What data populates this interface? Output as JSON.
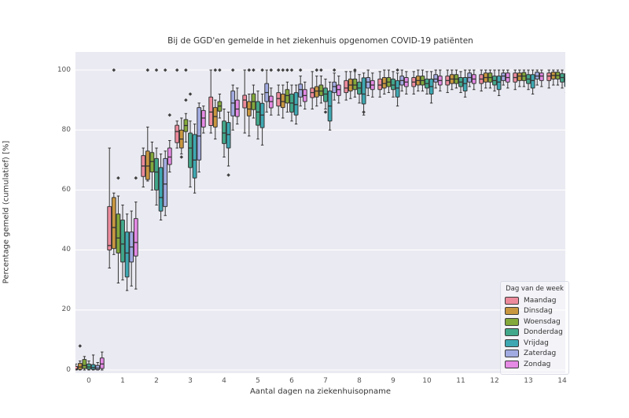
{
  "title": "Bij de GGD'en gemelde in het ziekenhuis opgenomen COVID-19 patiënten",
  "xlabel": "Aantal dagen na ziekenhuisopname",
  "ylabel": "Percentage gemeld (cumulatief) [%]",
  "legend": {
    "title": "Dag van de week",
    "entries": [
      {
        "label": "Maandag",
        "color": "#ec8a9c"
      },
      {
        "label": "Dinsdag",
        "color": "#c9973f"
      },
      {
        "label": "Woensdag",
        "color": "#83a83b"
      },
      {
        "label": "Donderdag",
        "color": "#42a88b"
      },
      {
        "label": "Vrijdag",
        "color": "#3ea8b2"
      },
      {
        "label": "Zaterdag",
        "color": "#a2abe1"
      },
      {
        "label": "Zondag",
        "color": "#e58ae5"
      }
    ]
  },
  "colors": {
    "plot_background": "#eaeaf2",
    "figure_background": "#ffffff",
    "grid": "#ffffff",
    "box_edge": "#333333",
    "flier": "#3f3f3f",
    "text": "#353535",
    "tick_text": "#555555"
  },
  "chart_data": {
    "type": "bar",
    "subtype": "grouped-boxplot",
    "title": "Bij de GGD'en gemelde in het ziekenhuis opgenomen COVID-19 patiënten",
    "xlabel": "Aantal dagen na ziekenhuisopname",
    "ylabel": "Percentage gemeld (cumulatief) [%]",
    "legend_title": "Dag van de week",
    "legend_position": "lower right",
    "grid": true,
    "categories": [
      0,
      1,
      2,
      3,
      4,
      5,
      6,
      7,
      8,
      9,
      10,
      11,
      12,
      13,
      14
    ],
    "x_tick_labels": [
      "0",
      "1",
      "2",
      "3",
      "4",
      "5",
      "6",
      "7",
      "8",
      "9",
      "10",
      "11",
      "12",
      "13",
      "14"
    ],
    "y_tick_values": [
      0,
      20,
      40,
      60,
      80,
      100
    ],
    "y_tick_labels": [
      "0",
      "20",
      "40",
      "60",
      "80",
      "100"
    ],
    "ylim": [
      -1,
      106
    ],
    "box_stats_order": [
      "whisker_low",
      "q1",
      "median",
      "q3",
      "whisker_high"
    ],
    "fliers_format": "[day_index, value]",
    "series": [
      {
        "name": "Maandag",
        "color": "#ec8a9c",
        "boxes": [
          [
            0,
            0,
            0.3,
            1.2,
            2
          ],
          [
            34,
            40,
            41.5,
            54.5,
            74
          ],
          [
            61,
            64.5,
            68,
            71.5,
            74
          ],
          [
            74,
            75.8,
            79.5,
            81.6,
            83
          ],
          [
            79,
            81.5,
            86,
            91,
            100
          ],
          [
            79,
            87.4,
            90,
            91.6,
            100
          ],
          [
            85,
            88,
            90.5,
            92.5,
            95
          ],
          [
            87,
            90.8,
            92.5,
            94,
            99.5
          ],
          [
            90,
            92.5,
            94,
            96.5,
            99.5
          ],
          [
            91,
            93.5,
            95,
            97,
            99.5
          ],
          [
            92,
            94.5,
            96,
            97.5,
            99.5
          ],
          [
            92.5,
            95,
            96.5,
            98,
            100
          ],
          [
            93,
            95.5,
            97,
            98.5,
            100
          ],
          [
            93.5,
            96,
            97.5,
            99,
            100
          ],
          [
            94,
            96.5,
            98,
            99,
            100
          ]
        ],
        "fliers": [
          [
            3,
            100
          ],
          [
            6,
            100
          ]
        ]
      },
      {
        "name": "Dinsdag",
        "color": "#c9973f",
        "boxes": [
          [
            0,
            0.2,
            1,
            2.2,
            3
          ],
          [
            38.5,
            40.5,
            47.5,
            57.5,
            59
          ],
          [
            63,
            63.5,
            68,
            73,
            81
          ],
          [
            72,
            74,
            77,
            80,
            84
          ],
          [
            77,
            81,
            84.5,
            87.5,
            90
          ],
          [
            78,
            84.7,
            87,
            89.5,
            92
          ],
          [
            84,
            87.5,
            89.5,
            92,
            95
          ],
          [
            88,
            91,
            93,
            94.5,
            98
          ],
          [
            90.5,
            93,
            95,
            97,
            99.5
          ],
          [
            92,
            94,
            95.5,
            97.5,
            100
          ],
          [
            93,
            95,
            96.5,
            98,
            100
          ],
          [
            93.5,
            95.5,
            97,
            98.5,
            100
          ],
          [
            94,
            96,
            97.5,
            99,
            100
          ],
          [
            94.5,
            96.5,
            98,
            99,
            100
          ],
          [
            95,
            97,
            98.2,
            99.3,
            100
          ]
        ],
        "fliers": [
          [
            0,
            8
          ],
          [
            1,
            100
          ],
          [
            2,
            100
          ],
          [
            3,
            71
          ],
          [
            4,
            100
          ],
          [
            5,
            100
          ],
          [
            6,
            100
          ],
          [
            7,
            100
          ]
        ]
      },
      {
        "name": "Woensdag",
        "color": "#83a83b",
        "boxes": [
          [
            0,
            0.5,
            1.5,
            3.5,
            4.5
          ],
          [
            29,
            39,
            44,
            52,
            58
          ],
          [
            60,
            66,
            69.5,
            72.5,
            76
          ],
          [
            76,
            79.5,
            81.5,
            83.5,
            85.5
          ],
          [
            84,
            86.3,
            88,
            89.5,
            92
          ],
          [
            84,
            86.8,
            89.5,
            92.1,
            95
          ],
          [
            86,
            89,
            91.5,
            93.5,
            96
          ],
          [
            89,
            91.5,
            93,
            95,
            98
          ],
          [
            91,
            93.5,
            95,
            97,
            99.5
          ],
          [
            92.5,
            94.5,
            96,
            97.5,
            100
          ],
          [
            93,
            95,
            96.5,
            98,
            100
          ],
          [
            94,
            95.5,
            97,
            98.5,
            100
          ],
          [
            94,
            96,
            97.5,
            99,
            100
          ],
          [
            94.5,
            96.5,
            98,
            99.2,
            100
          ],
          [
            95,
            97,
            98.2,
            99.3,
            100
          ]
        ],
        "fliers": [
          [
            1,
            64
          ],
          [
            3,
            90
          ],
          [
            3,
            100
          ],
          [
            4,
            100
          ],
          [
            5,
            100
          ],
          [
            6,
            100
          ],
          [
            7,
            100
          ],
          [
            8,
            100
          ]
        ]
      },
      {
        "name": "Donderdag",
        "color": "#42a88b",
        "boxes": [
          [
            0,
            0.3,
            1,
            2,
            3
          ],
          [
            30,
            36,
            42,
            50,
            55
          ],
          [
            55,
            60,
            66,
            70.5,
            74
          ],
          [
            61,
            67.5,
            74,
            79,
            83
          ],
          [
            71,
            75.5,
            79,
            83,
            87
          ],
          [
            77,
            81.6,
            86,
            89.5,
            93
          ],
          [
            83,
            86,
            89,
            92,
            95
          ],
          [
            87,
            89.5,
            92,
            94,
            97
          ],
          [
            89,
            92,
            94,
            96,
            98.5
          ],
          [
            91,
            93.5,
            95,
            97,
            99.5
          ],
          [
            92,
            94,
            95.5,
            97,
            99.5
          ],
          [
            92.5,
            94.5,
            96,
            97.5,
            99.5
          ],
          [
            93,
            95,
            96.5,
            98,
            100
          ],
          [
            93.5,
            95.5,
            97,
            98.5,
            100
          ],
          [
            94,
            96,
            97.5,
            98.8,
            100
          ]
        ],
        "fliers": [
          [
            2,
            100
          ],
          [
            3,
            92
          ],
          [
            6,
            100
          ],
          [
            7,
            86
          ]
        ]
      },
      {
        "name": "Vrijdag",
        "color": "#3ea8b2",
        "boxes": [
          [
            0,
            0.2,
            0.8,
            1.8,
            5
          ],
          [
            26.5,
            31,
            39,
            46,
            52
          ],
          [
            50,
            53,
            57.5,
            67.5,
            72
          ],
          [
            59,
            64,
            70,
            78.5,
            82
          ],
          [
            68,
            74,
            78.5,
            82.5,
            86
          ],
          [
            75,
            80.8,
            85,
            88.9,
            92
          ],
          [
            82,
            85,
            88.5,
            92.5,
            95
          ],
          [
            80,
            83,
            88,
            93,
            96
          ],
          [
            85,
            88.7,
            92,
            97.4,
            99
          ],
          [
            88,
            91,
            94,
            96.5,
            99
          ],
          [
            89,
            92,
            94.5,
            97,
            99.5
          ],
          [
            91,
            93,
            95.5,
            97.5,
            100
          ],
          [
            91.5,
            93.5,
            96,
            98,
            100
          ],
          [
            92,
            94,
            96.5,
            98.5,
            100
          ],
          [
            92.5,
            94.5,
            97,
            98.8,
            100
          ]
        ],
        "fliers": [
          [
            4,
            65
          ],
          [
            5,
            100
          ],
          [
            8,
            86
          ],
          [
            9,
            100
          ]
        ]
      },
      {
        "name": "Zaterdag",
        "color": "#a2abe1",
        "boxes": [
          [
            0,
            0.1,
            0.6,
            1.5,
            2.5
          ],
          [
            28,
            36,
            41,
            46,
            53
          ],
          [
            51.5,
            54.5,
            62,
            70.5,
            73
          ],
          [
            66,
            70,
            78,
            87.5,
            89
          ],
          [
            80,
            84.7,
            89,
            93,
            95
          ],
          [
            86,
            89.5,
            92.5,
            95.5,
            100
          ],
          [
            88,
            91,
            93.5,
            95.3,
            98
          ],
          [
            90,
            92.5,
            94.5,
            96,
            99
          ],
          [
            91.5,
            94,
            96,
            97.5,
            100
          ],
          [
            93,
            95,
            96.5,
            98,
            100
          ],
          [
            94,
            96,
            97,
            98.5,
            100
          ],
          [
            94.5,
            96,
            97.5,
            99,
            100
          ],
          [
            95,
            96.5,
            98,
            99,
            100
          ],
          [
            95,
            97,
            98,
            99.3,
            100
          ],
          [
            95.5,
            97.2,
            98.5,
            99.5,
            100
          ]
        ],
        "fliers": [
          [
            2,
            100
          ],
          [
            4,
            100
          ],
          [
            6,
            100
          ],
          [
            7,
            100
          ]
        ]
      },
      {
        "name": "Zondag",
        "color": "#e58ae5",
        "boxes": [
          [
            0,
            0.5,
            2,
            4,
            6
          ],
          [
            27,
            38,
            42.5,
            50.5,
            56
          ],
          [
            66,
            68.5,
            71,
            74,
            76.5
          ],
          [
            79,
            81,
            84,
            86.5,
            88
          ],
          [
            82,
            84.5,
            87,
            90,
            94
          ],
          [
            85,
            87.4,
            89.5,
            91.3,
            94
          ],
          [
            87,
            89.5,
            91.5,
            93.5,
            96
          ],
          [
            89,
            91.5,
            93.5,
            95,
            98
          ],
          [
            91,
            93.5,
            95,
            96.5,
            99
          ],
          [
            92,
            94.5,
            96,
            97.5,
            99.5
          ],
          [
            93,
            95,
            96.5,
            98,
            100
          ],
          [
            93.5,
            95.5,
            97,
            98.5,
            100
          ],
          [
            94,
            96,
            97.5,
            99,
            100
          ],
          [
            94.5,
            96.5,
            98,
            99,
            100
          ],
          [
            95,
            97,
            98.2,
            99.3,
            100
          ]
        ],
        "fliers": [
          [
            1,
            64
          ],
          [
            2,
            85
          ],
          [
            5,
            100
          ]
        ]
      }
    ]
  }
}
